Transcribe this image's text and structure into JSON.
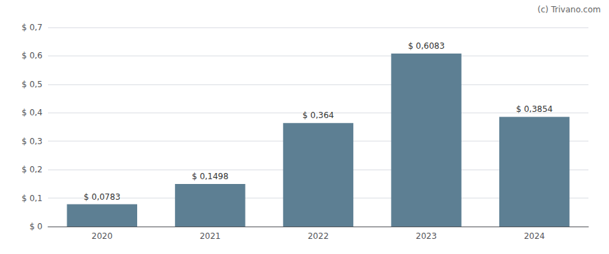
{
  "chart_data": {
    "type": "bar",
    "categories": [
      "2020",
      "2021",
      "2022",
      "2023",
      "2024"
    ],
    "values": [
      0.0783,
      0.1498,
      0.364,
      0.6083,
      0.3854
    ],
    "value_labels": [
      "$ 0,0783",
      "$ 0,1498",
      "$ 0,364",
      "$ 0,6083",
      "$ 0,3854"
    ],
    "data_labels": true,
    "color": "#5d7f93",
    "ylim": [
      0,
      0.7
    ],
    "yticks": [
      {
        "value": 0.0,
        "label": "$ 0"
      },
      {
        "value": 0.1,
        "label": "$ 0,1"
      },
      {
        "value": 0.2,
        "label": "$ 0,2"
      },
      {
        "value": 0.3,
        "label": "$ 0,3"
      },
      {
        "value": 0.4,
        "label": "$ 0,4"
      },
      {
        "value": 0.5,
        "label": "$ 0,5"
      },
      {
        "value": 0.6,
        "label": "$ 0,6"
      },
      {
        "value": 0.7,
        "label": "$ 0,7"
      }
    ],
    "grid": true,
    "annotations": [
      "(c) Trivano.com"
    ]
  }
}
